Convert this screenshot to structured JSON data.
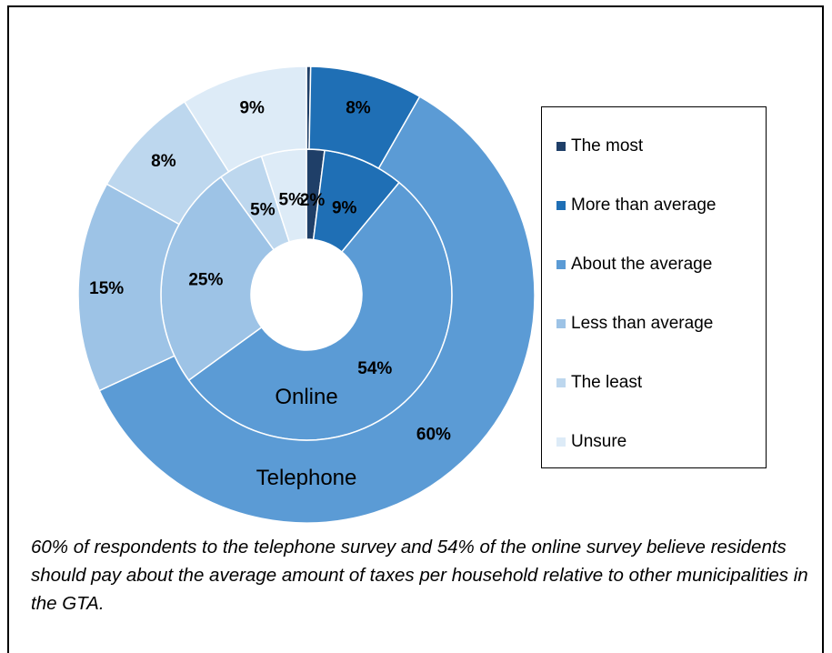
{
  "chart_data": {
    "type": "donut",
    "categories": [
      "The most",
      "More than average",
      "About the average",
      "Less than average",
      "The least",
      "Unsure"
    ],
    "colors": [
      "#1F3F68",
      "#1F6FB5",
      "#5B9BD5",
      "#9DC3E6",
      "#BDD7EE",
      "#DDEBF7"
    ],
    "series": [
      {
        "name": "Online",
        "values": [
          2,
          9,
          54,
          25,
          5,
          5
        ],
        "labels": [
          "2%",
          "9%",
          "54%",
          "25%",
          "5%",
          "5%"
        ]
      },
      {
        "name": "Telephone",
        "values": [
          0.3,
          8,
          60,
          15,
          8,
          9
        ],
        "labels": [
          "",
          "8%",
          "60%",
          "15%",
          "8%",
          "9%"
        ]
      }
    ],
    "legend": "right"
  },
  "caption": "60% of respondents to the telephone survey and 54% of the online survey believe residents should pay about the average amount of taxes per household relative to other municipalities in the GTA."
}
